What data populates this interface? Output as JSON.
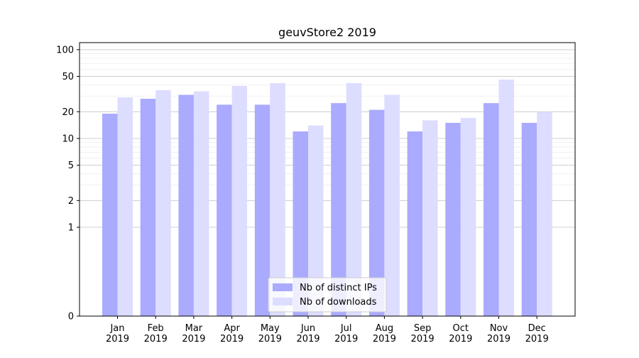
{
  "chart_data": {
    "type": "bar",
    "title": "geuvStore2 2019",
    "xlabel": "",
    "ylabel": "",
    "categories": [
      "Jan\n2019",
      "Feb\n2019",
      "Mar\n2019",
      "Apr\n2019",
      "May\n2019",
      "Jun\n2019",
      "Jul\n2019",
      "Aug\n2019",
      "Sep\n2019",
      "Oct\n2019",
      "Nov\n2019",
      "Dec\n2019"
    ],
    "series": [
      {
        "name": "Nb of distinct IPs",
        "color": "#aaaaff",
        "values": [
          19,
          28,
          31,
          24,
          24,
          12,
          25,
          21,
          12,
          15,
          25,
          15
        ]
      },
      {
        "name": "Nb of downloads",
        "color": "#ddddff",
        "values": [
          29,
          35,
          34,
          39,
          42,
          14,
          42,
          31,
          16,
          17,
          46,
          20
        ]
      }
    ],
    "yscale": "symlog",
    "ylim": [
      0,
      120
    ],
    "yticks": [
      0,
      1,
      2,
      5,
      10,
      20,
      50,
      100
    ],
    "grid": true,
    "legend_position": "lower-center"
  }
}
